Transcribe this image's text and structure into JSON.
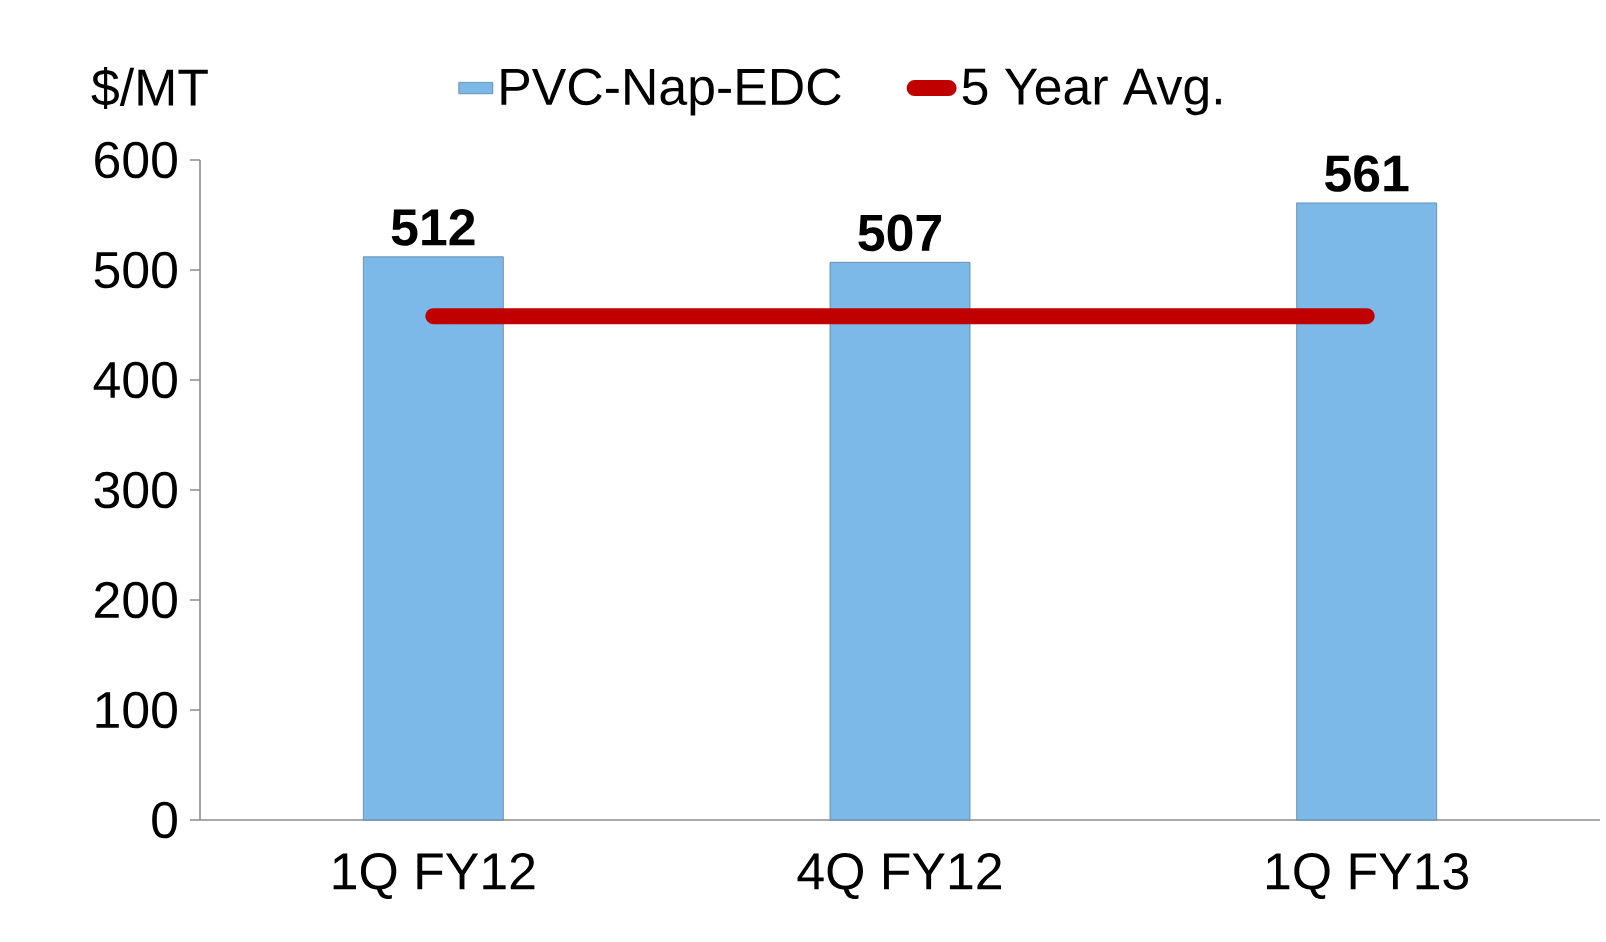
{
  "chart_data": {
    "type": "bar",
    "ylabel": "$/MT",
    "categories": [
      "1Q FY12",
      "4Q FY12",
      "1Q FY13"
    ],
    "series": [
      {
        "name": "PVC-Nap-EDC",
        "color": "#7db9e8",
        "values": [
          512,
          507,
          561
        ],
        "value_labels": [
          "512",
          "507",
          "561"
        ]
      },
      {
        "name": "5 Year Avg.",
        "type": "line",
        "color": "#c00000",
        "values": [
          458,
          458,
          458
        ],
        "marker": "none"
      }
    ],
    "ylim": [
      0,
      600
    ],
    "yticks": [
      0,
      100,
      200,
      300,
      400,
      500,
      600
    ],
    "grid": false,
    "legend": "top"
  }
}
